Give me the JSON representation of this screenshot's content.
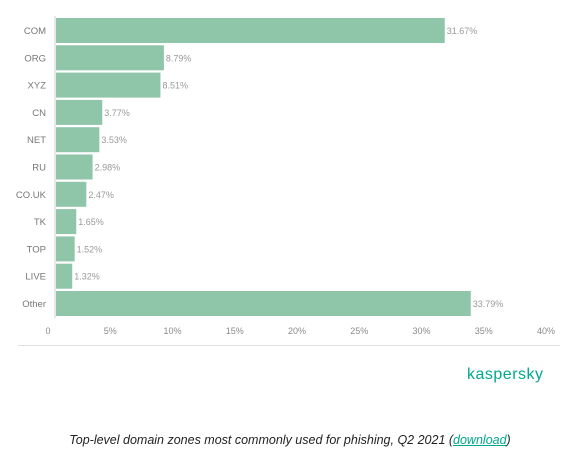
{
  "chart_data": {
    "type": "bar",
    "orientation": "horizontal",
    "categories": [
      "COM",
      "ORG",
      "XYZ",
      "CN",
      "NET",
      "RU",
      "CO.UK",
      "TK",
      "TOP",
      "LIVE",
      "Other"
    ],
    "values": [
      31.67,
      8.79,
      8.51,
      3.77,
      3.53,
      2.98,
      2.47,
      1.65,
      1.52,
      1.32,
      33.79
    ],
    "value_labels": [
      "31.67%",
      "8.79%",
      "8.51%",
      "3.77%",
      "3.53%",
      "2.98%",
      "2.47%",
      "1.65%",
      "1.52%",
      "1.32%",
      "33.79%"
    ],
    "xlim": [
      0,
      40
    ],
    "x_ticks": [
      0,
      5,
      10,
      15,
      20,
      25,
      30,
      35,
      40
    ],
    "x_tick_labels": [
      "0",
      "5%",
      "10%",
      "15%",
      "20%",
      "25%",
      "30%",
      "35%",
      "40%"
    ],
    "title": "",
    "xlabel": "",
    "ylabel": "",
    "grid": false,
    "bar_color": "#8fc5a9"
  },
  "brand": {
    "logo_text": "kaspersky",
    "color": "#00a88e"
  },
  "caption": {
    "text": "Top-level domain zones most commonly used for phishing, Q2 2021 (",
    "link_text": "download",
    "suffix": ")"
  }
}
